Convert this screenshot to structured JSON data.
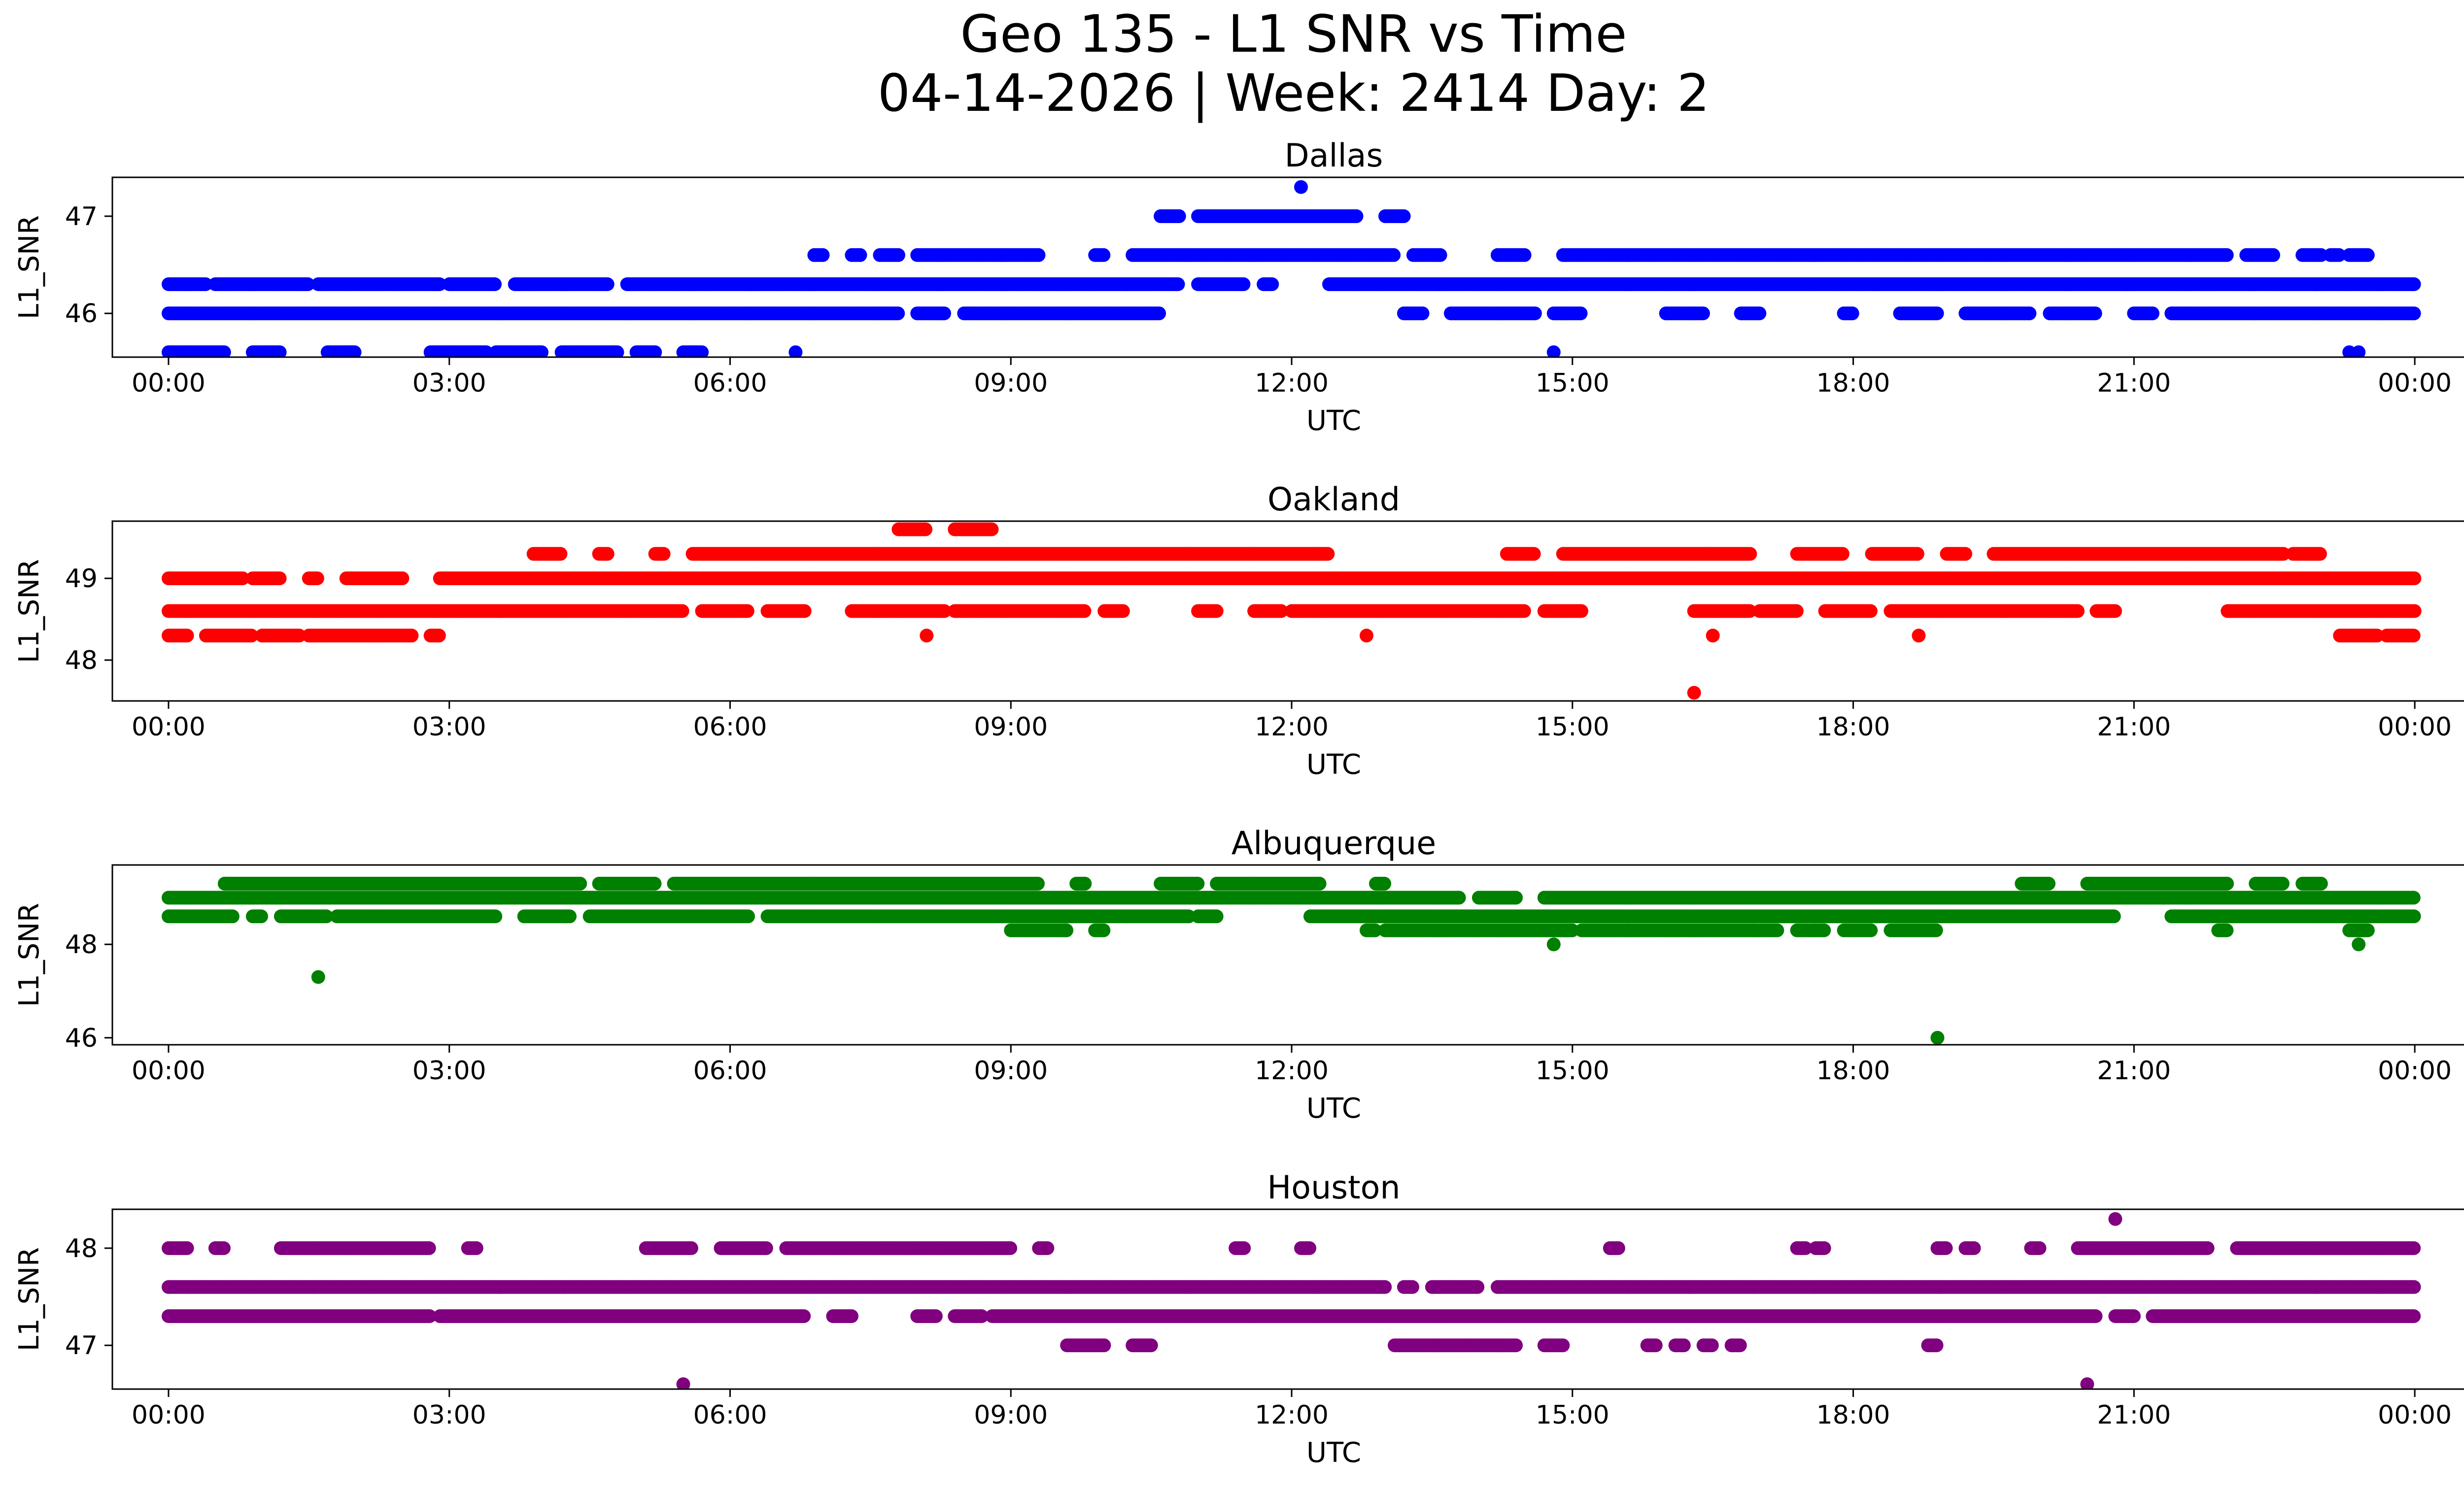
{
  "title": {
    "line1": "Geo 135 - L1 SNR vs Time",
    "line2": "04-14-2026 | Week: 2414 Day: 2"
  },
  "chart_data": [
    {
      "type": "scatter",
      "title": "Dallas",
      "xlabel": "UTC",
      "ylabel": "L1_SNR",
      "color": "#0000ff",
      "xlim": [
        -0.6,
        25.5
      ],
      "ylim": [
        45.55,
        47.4
      ],
      "yticks": [
        46,
        47
      ],
      "xtick_labels": [
        "00:00",
        "03:00",
        "06:00",
        "09:00",
        "12:00",
        "15:00",
        "18:00",
        "21:00",
        "00:00"
      ],
      "bands": [
        {
          "y": 46.0,
          "segments": [
            [
              0,
              7.8
            ],
            [
              8.0,
              8.3
            ],
            [
              8.5,
              9.0
            ],
            [
              9.0,
              10.6
            ],
            [
              13.2,
              13.4
            ],
            [
              13.7,
              14.6
            ],
            [
              14.8,
              15.1
            ],
            [
              16.0,
              16.4
            ],
            [
              16.8,
              17.0
            ],
            [
              17.9,
              18.0
            ],
            [
              18.5,
              18.9
            ],
            [
              19.2,
              19.9
            ],
            [
              20.1,
              20.6
            ],
            [
              21.0,
              21.2
            ],
            [
              21.4,
              24.0
            ]
          ]
        },
        {
          "y": 46.3,
          "segments": [
            [
              0,
              0.4
            ],
            [
              0.5,
              1.5
            ],
            [
              1.6,
              2.9
            ],
            [
              3.0,
              3.5
            ],
            [
              3.7,
              4.7
            ],
            [
              4.9,
              10.8
            ],
            [
              11.0,
              11.5
            ],
            [
              11.7,
              11.8
            ],
            [
              12.4,
              24.0
            ]
          ]
        },
        {
          "y": 46.6,
          "segments": [
            [
              6.9,
              7.0
            ],
            [
              7.3,
              7.4
            ],
            [
              7.6,
              7.8
            ],
            [
              8.0,
              9.3
            ],
            [
              9.9,
              10.0
            ],
            [
              10.3,
              13.1
            ],
            [
              13.3,
              13.6
            ],
            [
              14.2,
              14.5
            ],
            [
              14.9,
              22.0
            ],
            [
              22.2,
              22.5
            ],
            [
              22.8,
              23.0
            ],
            [
              23.1,
              23.2
            ],
            [
              23.3,
              23.5
            ]
          ]
        },
        {
          "y": 47.0,
          "segments": [
            [
              10.6,
              10.8
            ],
            [
              11.0,
              12.7
            ],
            [
              13.0,
              13.2
            ]
          ]
        },
        {
          "y": 45.6,
          "segments": [
            [
              0,
              0.6
            ],
            [
              0.9,
              1.2
            ],
            [
              1.7,
              2.0
            ],
            [
              2.8,
              3.4
            ],
            [
              3.5,
              4.0
            ],
            [
              4.2,
              4.8
            ],
            [
              5.0,
              5.2
            ],
            [
              5.5,
              5.7
            ]
          ]
        }
      ],
      "points": [
        [
          1.1,
          45.6
        ],
        [
          1.9,
          45.6
        ],
        [
          6.7,
          45.6
        ],
        [
          12.1,
          47.3
        ],
        [
          14.8,
          45.6
        ],
        [
          23.3,
          45.6
        ],
        [
          23.4,
          45.6
        ]
      ]
    },
    {
      "type": "scatter",
      "title": "Oakland",
      "xlabel": "UTC",
      "ylabel": "L1_SNR",
      "color": "#ff0000",
      "xlim": [
        -0.6,
        25.5
      ],
      "ylim": [
        47.5,
        49.7
      ],
      "yticks": [
        48,
        49
      ],
      "xtick_labels": [
        "00:00",
        "03:00",
        "06:00",
        "09:00",
        "12:00",
        "15:00",
        "18:00",
        "21:00",
        "00:00"
      ],
      "bands": [
        {
          "y": 48.6,
          "segments": [
            [
              0,
              5.5
            ],
            [
              5.7,
              6.2
            ],
            [
              6.4,
              6.8
            ],
            [
              7.3,
              8.3
            ],
            [
              8.4,
              9.8
            ],
            [
              10.0,
              10.2
            ],
            [
              11.0,
              11.2
            ],
            [
              11.6,
              11.9
            ],
            [
              12.0,
              14.5
            ],
            [
              14.7,
              15.1
            ],
            [
              16.3,
              16.9
            ],
            [
              17.0,
              17.4
            ],
            [
              17.7,
              18.2
            ],
            [
              18.4,
              20.4
            ],
            [
              20.6,
              20.8
            ],
            [
              22.0,
              24.0
            ]
          ]
        },
        {
          "y": 49.0,
          "segments": [
            [
              0,
              0.8
            ],
            [
              0.9,
              1.2
            ],
            [
              1.5,
              1.6
            ],
            [
              1.9,
              2.3
            ],
            [
              2.3,
              2.5
            ],
            [
              2.9,
              24.0
            ]
          ]
        },
        {
          "y": 49.3,
          "segments": [
            [
              3.9,
              4.2
            ],
            [
              4.6,
              4.7
            ],
            [
              5.2,
              5.3
            ],
            [
              5.6,
              12.4
            ],
            [
              14.3,
              14.6
            ],
            [
              14.9,
              16.9
            ],
            [
              17.4,
              17.9
            ],
            [
              18.2,
              18.7
            ],
            [
              19.0,
              19.2
            ],
            [
              19.5,
              22.6
            ],
            [
              22.7,
              23.0
            ]
          ]
        },
        {
          "y": 48.3,
          "segments": [
            [
              0,
              0.2
            ],
            [
              0.4,
              0.9
            ],
            [
              1.0,
              1.4
            ],
            [
              1.5,
              2.6
            ],
            [
              2.8,
              2.9
            ],
            [
              23.2,
              23.6
            ],
            [
              23.7,
              24.0
            ]
          ]
        },
        {
          "y": 49.6,
          "segments": [
            [
              7.8,
              8.1
            ],
            [
              8.4,
              8.8
            ]
          ]
        }
      ],
      "points": [
        [
          8.1,
          48.3
        ],
        [
          12.8,
          48.3
        ],
        [
          16.3,
          47.6
        ],
        [
          16.5,
          48.3
        ],
        [
          18.7,
          48.3
        ]
      ]
    },
    {
      "type": "scatter",
      "title": "Albuquerque",
      "xlabel": "UTC",
      "ylabel": "L1_SNR",
      "color": "#008000",
      "xlim": [
        -0.6,
        25.5
      ],
      "ylim": [
        45.85,
        49.7
      ],
      "yticks": [
        46,
        48
      ],
      "xtick_labels": [
        "00:00",
        "03:00",
        "06:00",
        "09:00",
        "12:00",
        "15:00",
        "18:00",
        "21:00",
        "00:00"
      ],
      "bands": [
        {
          "y": 48.6,
          "segments": [
            [
              0,
              0.7
            ],
            [
              0.9,
              1.0
            ],
            [
              1.2,
              1.7
            ],
            [
              1.8,
              3.5
            ],
            [
              3.8,
              4.3
            ],
            [
              4.5,
              6.2
            ],
            [
              6.4,
              10.9
            ],
            [
              11.0,
              11.2
            ],
            [
              12.2,
              20.8
            ],
            [
              21.4,
              24.0
            ]
          ]
        },
        {
          "y": 49.0,
          "segments": [
            [
              0,
              13.8
            ],
            [
              14.0,
              14.4
            ],
            [
              14.7,
              24.0
            ]
          ]
        },
        {
          "y": 49.3,
          "segments": [
            [
              0.6,
              4.4
            ],
            [
              4.6,
              5.2
            ],
            [
              5.4,
              9.3
            ],
            [
              9.7,
              9.8
            ],
            [
              10.6,
              11.0
            ],
            [
              11.2,
              12.3
            ],
            [
              12.9,
              13.0
            ],
            [
              19.8,
              20.1
            ],
            [
              20.5,
              22.0
            ],
            [
              22.3,
              22.6
            ],
            [
              22.8,
              23.0
            ]
          ]
        },
        {
          "y": 48.3,
          "segments": [
            [
              9.0,
              9.6
            ],
            [
              9.9,
              10.0
            ],
            [
              12.8,
              12.9
            ],
            [
              13.0,
              15.0
            ],
            [
              15.1,
              17.2
            ],
            [
              17.4,
              17.7
            ],
            [
              17.9,
              18.2
            ],
            [
              18.4,
              18.9
            ],
            [
              21.9,
              22.0
            ],
            [
              23.3,
              23.5
            ]
          ]
        }
      ],
      "points": [
        [
          1.6,
          47.3
        ],
        [
          14.8,
          48.0
        ],
        [
          18.9,
          46.0
        ],
        [
          23.4,
          48.0
        ]
      ]
    },
    {
      "type": "scatter",
      "title": "Houston",
      "xlabel": "UTC",
      "ylabel": "L1_SNR",
      "color": "#800080",
      "xlim": [
        -0.6,
        25.5
      ],
      "ylim": [
        46.55,
        48.4
      ],
      "yticks": [
        47,
        48
      ],
      "xtick_labels": [
        "00:00",
        "03:00",
        "06:00",
        "09:00",
        "12:00",
        "15:00",
        "18:00",
        "21:00",
        "00:00"
      ],
      "bands": [
        {
          "y": 47.6,
          "segments": [
            [
              0,
              13.0
            ],
            [
              13.2,
              13.3
            ],
            [
              13.5,
              14.0
            ],
            [
              14.2,
              24.0
            ]
          ]
        },
        {
          "y": 47.3,
          "segments": [
            [
              0,
              2.8
            ],
            [
              2.9,
              6.8
            ],
            [
              7.1,
              7.3
            ],
            [
              8.0,
              8.2
            ],
            [
              8.4,
              8.7
            ],
            [
              8.8,
              20.6
            ],
            [
              20.8,
              21.0
            ],
            [
              21.2,
              24.0
            ]
          ]
        },
        {
          "y": 48.0,
          "segments": [
            [
              0,
              0.2
            ],
            [
              0.5,
              0.6
            ],
            [
              1.2,
              2.8
            ],
            [
              3.2,
              3.3
            ],
            [
              5.1,
              5.6
            ],
            [
              5.9,
              6.4
            ],
            [
              6.6,
              9.0
            ],
            [
              9.3,
              9.4
            ],
            [
              11.4,
              11.5
            ],
            [
              12.1,
              12.2
            ],
            [
              15.4,
              15.5
            ],
            [
              17.4,
              17.5
            ],
            [
              17.6,
              17.7
            ],
            [
              18.9,
              19.0
            ],
            [
              19.2,
              19.3
            ],
            [
              19.9,
              20.0
            ],
            [
              20.4,
              21.8
            ],
            [
              22.1,
              24.0
            ]
          ]
        },
        {
          "y": 47.0,
          "segments": [
            [
              9.6,
              10.0
            ],
            [
              10.3,
              10.5
            ],
            [
              13.1,
              14.4
            ],
            [
              14.7,
              14.9
            ],
            [
              15.8,
              15.9
            ],
            [
              16.1,
              16.2
            ],
            [
              16.4,
              16.5
            ],
            [
              16.7,
              16.8
            ],
            [
              18.8,
              18.9
            ]
          ]
        }
      ],
      "points": [
        [
          5.5,
          46.6
        ],
        [
          20.5,
          46.6
        ],
        [
          20.8,
          48.3
        ]
      ]
    }
  ]
}
